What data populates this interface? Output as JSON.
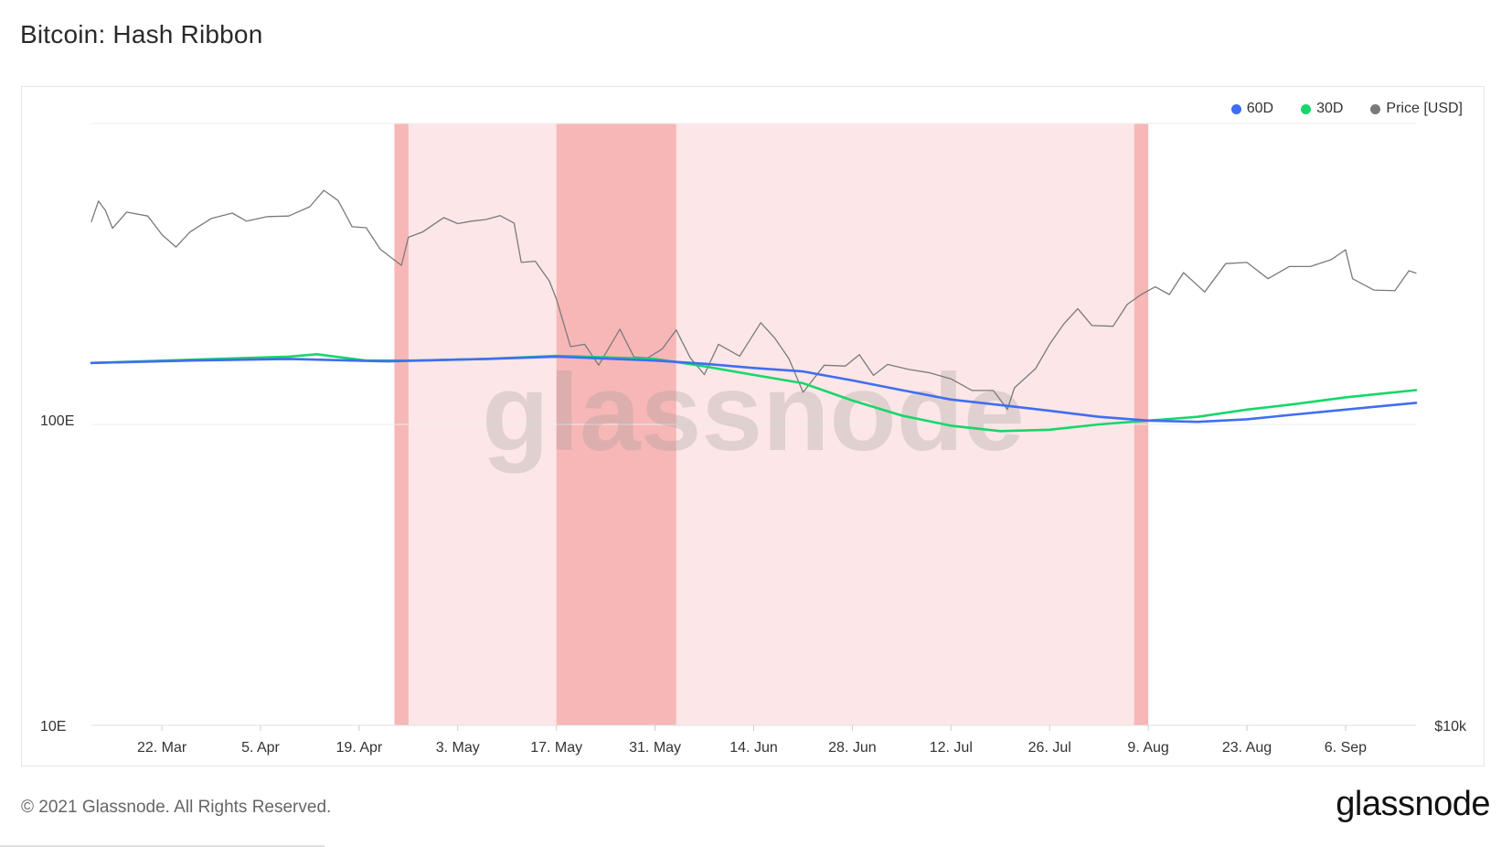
{
  "header": {
    "title": "Bitcoin: Hash Ribbon"
  },
  "footer": {
    "copyright": "© 2021 Glassnode. All Rights Reserved.",
    "logo": "glassnode"
  },
  "watermark": "glassnode",
  "colors": {
    "d60": "#3f6ef0",
    "d30": "#18d66a",
    "price": "#7a7a7a",
    "capitulation_light": "#fde6e7",
    "capitulation_dark": "#f8b7b7"
  },
  "chart_data": {
    "type": "line",
    "title": "Bitcoin: Hash Ribbon",
    "x_range": [
      "2021-03-12",
      "2021-09-16"
    ],
    "left_axis": {
      "scale": "log",
      "ticks": [
        "10E",
        "100E"
      ]
    },
    "right_axis": {
      "scale": "log",
      "ticks": [
        "$10k"
      ]
    },
    "x_ticks": [
      "22. Mar",
      "5. Apr",
      "19. Apr",
      "3. May",
      "17. May",
      "31. May",
      "14. Jun",
      "28. Jun",
      "12. Jul",
      "26. Jul",
      "9. Aug",
      "23. Aug",
      "6. Sep"
    ],
    "legend": {
      "position": "top-right",
      "items": [
        "60D",
        "30D",
        "Price [USD]"
      ]
    },
    "shaded_regions": [
      {
        "start": "2021-04-24",
        "end": "2021-08-09",
        "intensity": "light"
      },
      {
        "start": "2021-04-24",
        "end": "2021-04-26",
        "intensity": "dark"
      },
      {
        "start": "2021-05-17",
        "end": "2021-06-03",
        "intensity": "dark"
      },
      {
        "start": "2021-08-07",
        "end": "2021-08-09",
        "intensity": "dark"
      }
    ],
    "series": [
      {
        "name": "60D",
        "unit": "EH/s",
        "points": [
          [
            "2021-03-12",
            160
          ],
          [
            "2021-03-26",
            163
          ],
          [
            "2021-04-09",
            165
          ],
          [
            "2021-04-23",
            162
          ],
          [
            "2021-05-07",
            165
          ],
          [
            "2021-05-17",
            168
          ],
          [
            "2021-05-31",
            163
          ],
          [
            "2021-06-07",
            159
          ],
          [
            "2021-06-14",
            154
          ],
          [
            "2021-06-21",
            150
          ],
          [
            "2021-06-28",
            140
          ],
          [
            "2021-07-05",
            130
          ],
          [
            "2021-07-12",
            121
          ],
          [
            "2021-07-19",
            116
          ],
          [
            "2021-07-26",
            111
          ],
          [
            "2021-08-02",
            106
          ],
          [
            "2021-08-09",
            103
          ],
          [
            "2021-08-16",
            102
          ],
          [
            "2021-08-23",
            104
          ],
          [
            "2021-08-30",
            108
          ],
          [
            "2021-09-06",
            112
          ],
          [
            "2021-09-16",
            118
          ]
        ]
      },
      {
        "name": "30D",
        "unit": "EH/s",
        "points": [
          [
            "2021-03-12",
            160
          ],
          [
            "2021-03-26",
            164
          ],
          [
            "2021-04-09",
            168
          ],
          [
            "2021-04-13",
            171
          ],
          [
            "2021-04-20",
            163
          ],
          [
            "2021-04-27",
            163
          ],
          [
            "2021-05-07",
            165
          ],
          [
            "2021-05-17",
            169
          ],
          [
            "2021-05-31",
            165
          ],
          [
            "2021-06-07",
            156
          ],
          [
            "2021-06-14",
            146
          ],
          [
            "2021-06-21",
            137
          ],
          [
            "2021-06-28",
            120
          ],
          [
            "2021-07-05",
            107
          ],
          [
            "2021-07-12",
            99
          ],
          [
            "2021-07-19",
            95
          ],
          [
            "2021-07-26",
            96
          ],
          [
            "2021-08-02",
            100
          ],
          [
            "2021-08-09",
            103
          ],
          [
            "2021-08-16",
            106
          ],
          [
            "2021-08-23",
            112
          ],
          [
            "2021-08-30",
            117
          ],
          [
            "2021-09-06",
            123
          ],
          [
            "2021-09-16",
            130
          ]
        ]
      },
      {
        "name": "Price [USD]",
        "unit": "USD",
        "points": [
          [
            "2021-03-12",
            57000
          ],
          [
            "2021-03-13",
            61200
          ],
          [
            "2021-03-14",
            59200
          ],
          [
            "2021-03-15",
            55700
          ],
          [
            "2021-03-17",
            58900
          ],
          [
            "2021-03-20",
            58100
          ],
          [
            "2021-03-22",
            54500
          ],
          [
            "2021-03-24",
            52200
          ],
          [
            "2021-03-26",
            55000
          ],
          [
            "2021-03-29",
            57600
          ],
          [
            "2021-04-01",
            58700
          ],
          [
            "2021-04-03",
            57100
          ],
          [
            "2021-04-06",
            58000
          ],
          [
            "2021-04-09",
            58100
          ],
          [
            "2021-04-12",
            60000
          ],
          [
            "2021-04-14",
            63500
          ],
          [
            "2021-04-16",
            61300
          ],
          [
            "2021-04-18",
            56000
          ],
          [
            "2021-04-20",
            55800
          ],
          [
            "2021-04-22",
            51800
          ],
          [
            "2021-04-25",
            49000
          ],
          [
            "2021-04-26",
            54000
          ],
          [
            "2021-04-28",
            55000
          ],
          [
            "2021-05-01",
            57800
          ],
          [
            "2021-05-03",
            56600
          ],
          [
            "2021-05-05",
            57100
          ],
          [
            "2021-05-07",
            57400
          ],
          [
            "2021-05-09",
            58200
          ],
          [
            "2021-05-11",
            56700
          ],
          [
            "2021-05-12",
            49500
          ],
          [
            "2021-05-14",
            49700
          ],
          [
            "2021-05-16",
            46400
          ],
          [
            "2021-05-17",
            43600
          ],
          [
            "2021-05-19",
            37000
          ],
          [
            "2021-05-21",
            37300
          ],
          [
            "2021-05-23",
            34700
          ],
          [
            "2021-05-26",
            39300
          ],
          [
            "2021-05-28",
            35700
          ],
          [
            "2021-05-30",
            35600
          ],
          [
            "2021-06-01",
            36700
          ],
          [
            "2021-06-03",
            39200
          ],
          [
            "2021-06-05",
            35600
          ],
          [
            "2021-06-07",
            33600
          ],
          [
            "2021-06-09",
            37300
          ],
          [
            "2021-06-12",
            35800
          ],
          [
            "2021-06-15",
            40200
          ],
          [
            "2021-06-17",
            38100
          ],
          [
            "2021-06-19",
            35500
          ],
          [
            "2021-06-21",
            31600
          ],
          [
            "2021-06-24",
            34700
          ],
          [
            "2021-06-27",
            34600
          ],
          [
            "2021-06-29",
            36000
          ],
          [
            "2021-07-01",
            33500
          ],
          [
            "2021-07-03",
            34800
          ],
          [
            "2021-07-06",
            34200
          ],
          [
            "2021-07-09",
            33800
          ],
          [
            "2021-07-12",
            33100
          ],
          [
            "2021-07-15",
            31800
          ],
          [
            "2021-07-18",
            31800
          ],
          [
            "2021-07-20",
            29800
          ],
          [
            "2021-07-21",
            32100
          ],
          [
            "2021-07-24",
            34300
          ],
          [
            "2021-07-26",
            37300
          ],
          [
            "2021-07-28",
            40000
          ],
          [
            "2021-07-30",
            42200
          ],
          [
            "2021-08-01",
            39800
          ],
          [
            "2021-08-04",
            39700
          ],
          [
            "2021-08-06",
            42800
          ],
          [
            "2021-08-08",
            44300
          ],
          [
            "2021-08-10",
            45500
          ],
          [
            "2021-08-12",
            44300
          ],
          [
            "2021-08-14",
            47800
          ],
          [
            "2021-08-17",
            44700
          ],
          [
            "2021-08-20",
            49300
          ],
          [
            "2021-08-23",
            49500
          ],
          [
            "2021-08-26",
            46800
          ],
          [
            "2021-08-29",
            48800
          ],
          [
            "2021-09-01",
            48800
          ],
          [
            "2021-09-04",
            50000
          ],
          [
            "2021-09-06",
            51700
          ],
          [
            "2021-09-07",
            46800
          ],
          [
            "2021-09-10",
            45000
          ],
          [
            "2021-09-13",
            44900
          ],
          [
            "2021-09-15",
            48100
          ],
          [
            "2021-09-16",
            47700
          ]
        ]
      }
    ]
  }
}
